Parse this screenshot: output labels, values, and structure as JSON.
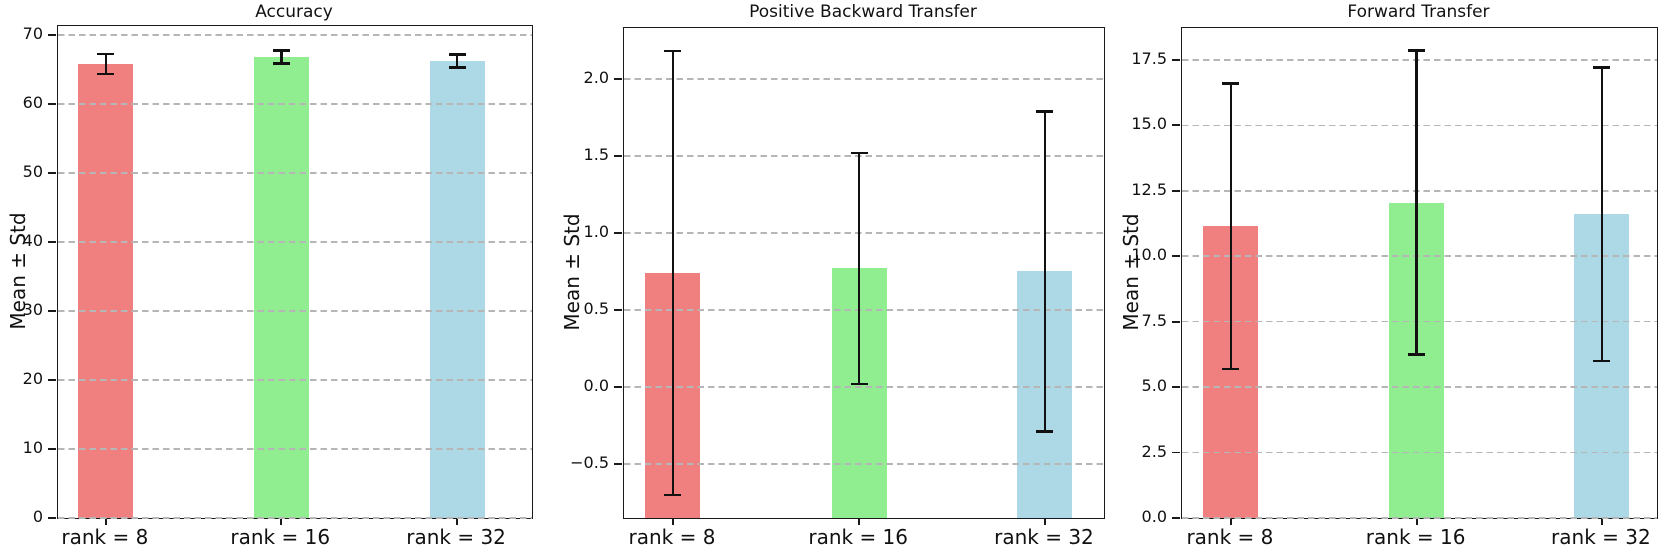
{
  "figure": {
    "background": "#ffffff",
    "grid_color": "#b6b6b6",
    "errorbar_color": "#111111",
    "spine_color": "#1a1a1a"
  },
  "chart_data": [
    {
      "type": "bar",
      "title": "Accuracy",
      "ylabel": "Mean ± Std",
      "xlabel": "",
      "categories": [
        "rank = 8",
        "rank = 16",
        "rank = 32"
      ],
      "values": [
        65.8,
        66.8,
        66.2
      ],
      "errors_std": [
        1.45,
        0.95,
        0.95
      ],
      "bar_colors": [
        "#F08080",
        "#90EE90",
        "#ADD8E6"
      ],
      "ylim": [
        0,
        71.3
      ],
      "ytick_values": [
        0,
        10,
        20,
        30,
        40,
        50,
        60,
        70
      ],
      "ytick_labels": [
        "0",
        "10",
        "20",
        "30",
        "40",
        "50",
        "60",
        "70"
      ],
      "grid": "dashed-horizontal",
      "legend": "none"
    },
    {
      "type": "bar",
      "title": "Positive Backward Transfer",
      "ylabel": "Mean ± Std",
      "xlabel": "",
      "categories": [
        "rank = 8",
        "rank = 16",
        "rank = 32"
      ],
      "values": [
        0.74,
        0.77,
        0.75
      ],
      "errors_std": [
        1.44,
        0.75,
        1.04
      ],
      "bar_colors": [
        "#F08080",
        "#90EE90",
        "#ADD8E6"
      ],
      "ylim": [
        -0.85,
        2.33
      ],
      "ytick_values": [
        -0.5,
        0.0,
        0.5,
        1.0,
        1.5,
        2.0
      ],
      "ytick_labels": [
        "−0.5",
        "0.0",
        "0.5",
        "1.0",
        "1.5",
        "2.0"
      ],
      "grid": "dashed-horizontal",
      "legend": "none"
    },
    {
      "type": "bar",
      "title": "Forward Transfer",
      "ylabel": "Mean ± Std",
      "xlabel": "",
      "categories": [
        "rank = 8",
        "rank = 16",
        "rank = 32"
      ],
      "values": [
        11.15,
        12.05,
        11.6
      ],
      "errors_std": [
        5.45,
        5.8,
        5.6
      ],
      "bar_colors": [
        "#F08080",
        "#90EE90",
        "#ADD8E6"
      ],
      "ylim": [
        0,
        18.72
      ],
      "ytick_values": [
        0.0,
        2.5,
        5.0,
        7.5,
        10.0,
        12.5,
        15.0,
        17.5
      ],
      "ytick_labels": [
        "0.0",
        "2.5",
        "5.0",
        "7.5",
        "10.0",
        "12.5",
        "15.0",
        "17.5"
      ],
      "grid": "dashed-horizontal",
      "legend": "none"
    }
  ]
}
